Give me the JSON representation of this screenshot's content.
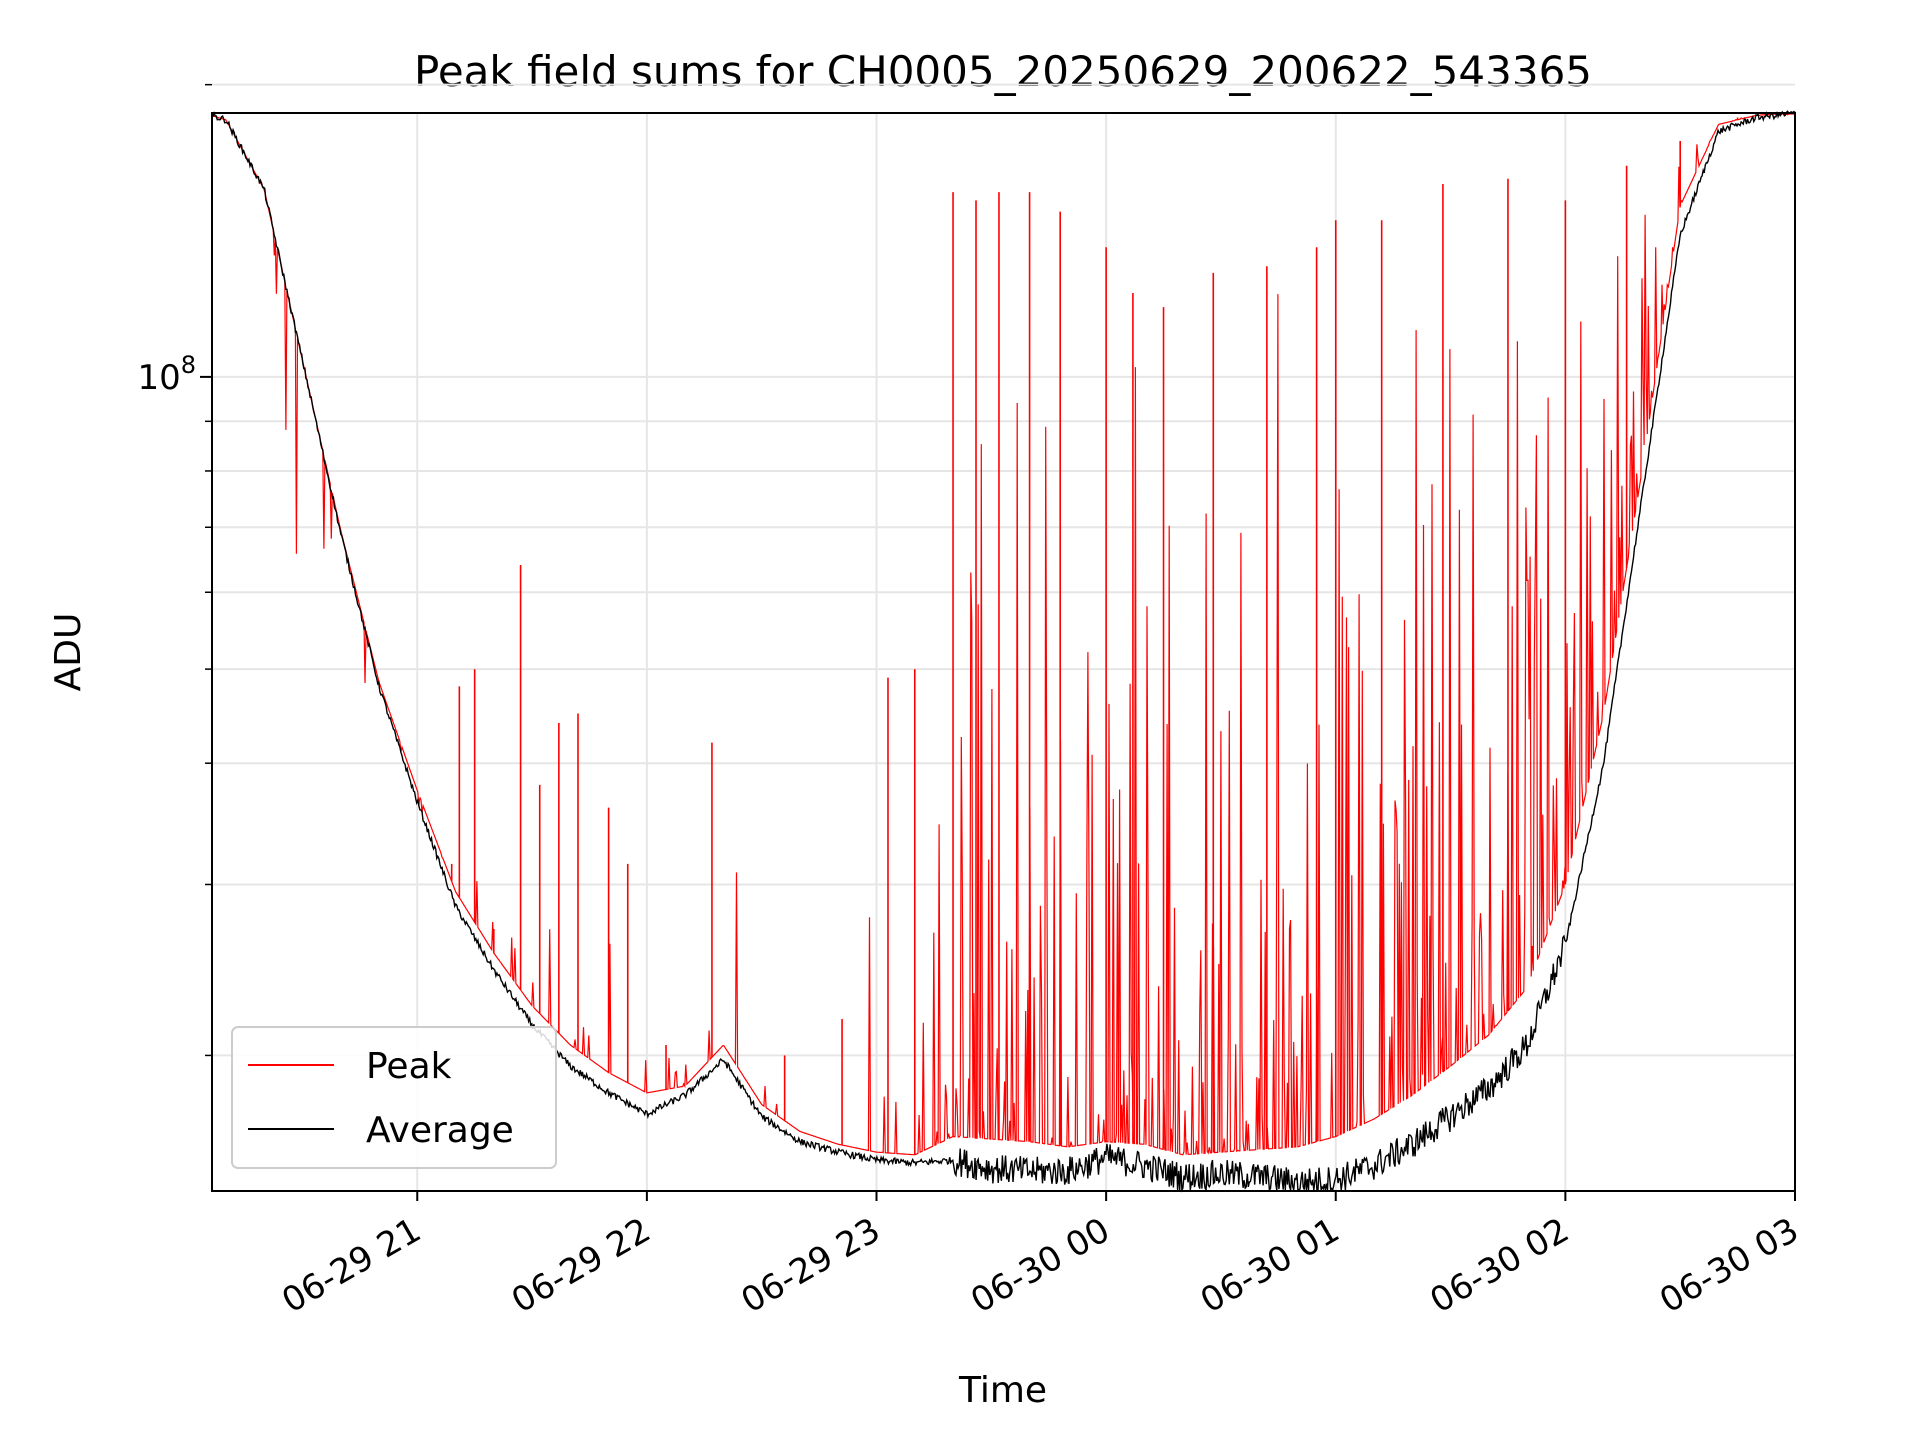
{
  "chart_data": {
    "type": "line",
    "title": "Peak field sums for CH0005_20250629_200622_543365",
    "xlabel": "Time",
    "ylabel": "ADU",
    "yscale": "log",
    "xlim": [
      "2025-06-29 20:06:22",
      "2025-06-30 03:00:00"
    ],
    "ylim": [
      14500000,
      187000000
    ],
    "x_ticks": [
      "06-29 21",
      "06-29 22",
      "06-29 23",
      "06-30 00",
      "06-30 01",
      "06-30 02",
      "06-30 03"
    ],
    "y_ticks": [
      {
        "value": 100000000,
        "label": "10",
        "exponent": "8"
      }
    ],
    "y_minor_ticks": [
      20000000,
      30000000,
      40000000,
      50000000,
      60000000,
      70000000,
      80000000,
      90000000,
      200000000
    ],
    "grid": true,
    "legend_position": "lower-left",
    "colors": {
      "peak": "#ff0000",
      "average": "#000000"
    },
    "series": [
      {
        "name": "Average",
        "x": [
          "20:06",
          "20:10",
          "20:20",
          "20:30",
          "20:40",
          "20:50",
          "21:00",
          "21:10",
          "21:20",
          "21:30",
          "21:40",
          "21:50",
          "22:00",
          "22:10",
          "22:20",
          "22:30",
          "22:40",
          "22:50",
          "23:00",
          "23:10",
          "23:20",
          "23:30",
          "23:40",
          "23:50",
          "00:00",
          "00:10",
          "00:20",
          "00:30",
          "00:40",
          "00:50",
          "01:00",
          "01:10",
          "01:20",
          "01:30",
          "01:40",
          "01:50",
          "02:00",
          "02:10",
          "02:20",
          "02:30",
          "02:40",
          "02:50",
          "03:00"
        ],
        "values": [
          186000000,
          184000000,
          156000000,
          104000000,
          69000000,
          48000000,
          36500000,
          28500000,
          24500000,
          21500000,
          19500000,
          18300000,
          17400000,
          18200000,
          19800000,
          17300000,
          16300000,
          15900000,
          15600000,
          15500000,
          15600000,
          15300000,
          15200000,
          15200000,
          15700000,
          15400000,
          15000000,
          15100000,
          15000000,
          14800000,
          14900000,
          15400000,
          16200000,
          17300000,
          18500000,
          20500000,
          26000000,
          40000000,
          75000000,
          140000000,
          179000000,
          185000000,
          187000000
        ]
      },
      {
        "name": "Peak",
        "envelope_x": [
          "20:06",
          "20:10",
          "20:20",
          "20:30",
          "20:40",
          "20:50",
          "21:00",
          "21:10",
          "21:20",
          "21:30",
          "21:40",
          "21:50",
          "22:00",
          "22:10",
          "22:20",
          "22:30",
          "22:40",
          "22:50",
          "23:00",
          "23:10",
          "23:20",
          "23:30",
          "23:40",
          "23:50",
          "00:00",
          "00:10",
          "00:20",
          "00:30",
          "00:40",
          "00:50",
          "01:00",
          "01:10",
          "01:20",
          "01:30",
          "01:40",
          "01:50",
          "02:00",
          "02:10",
          "02:20",
          "02:30",
          "02:40",
          "02:50",
          "03:00"
        ],
        "envelope_values": [
          186000000,
          184000000,
          156000000,
          104000000,
          69500000,
          48500000,
          37500000,
          29500000,
          25500000,
          22500000,
          20500000,
          19200000,
          18300000,
          18600000,
          20500000,
          17800000,
          16700000,
          16200000,
          15900000,
          15800000,
          16500000,
          16400000,
          16300000,
          16100000,
          16300000,
          16200000,
          15800000,
          15900000,
          16000000,
          16100000,
          16500000,
          17200000,
          18200000,
          19500000,
          21000000,
          23500000,
          30000000,
          45000000,
          80000000,
          150000000,
          182000000,
          186000000,
          187000000
        ],
        "spikes": [
          {
            "t": "21:09",
            "v": 31500000
          },
          {
            "t": "21:11",
            "v": 48000000
          },
          {
            "t": "21:15",
            "v": 50000000
          },
          {
            "t": "21:20",
            "v": 27000000
          },
          {
            "t": "21:27",
            "v": 64000000
          },
          {
            "t": "21:32",
            "v": 38000000
          },
          {
            "t": "21:37",
            "v": 44000000
          },
          {
            "t": "21:42",
            "v": 45000000
          },
          {
            "t": "21:50",
            "v": 36000000
          },
          {
            "t": "21:55",
            "v": 31500000
          },
          {
            "t": "22:05",
            "v": 20500000
          },
          {
            "t": "22:17",
            "v": 42000000
          },
          {
            "t": "22:36",
            "v": 20000000
          },
          {
            "t": "22:51",
            "v": 21800000
          },
          {
            "t": "23:03",
            "v": 49000000
          },
          {
            "t": "23:10",
            "v": 50000000
          },
          {
            "t": "23:20",
            "v": 155000000
          },
          {
            "t": "23:26",
            "v": 152000000
          },
          {
            "t": "23:32",
            "v": 155000000
          },
          {
            "t": "23:40",
            "v": 155000000
          },
          {
            "t": "23:48",
            "v": 148000000
          },
          {
            "t": "24:00",
            "v": 136000000
          },
          {
            "t": "24:07",
            "v": 122000000
          },
          {
            "t": "24:15",
            "v": 118000000
          },
          {
            "t": "24:28",
            "v": 128000000
          },
          {
            "t": "24:42",
            "v": 130000000
          },
          {
            "t": "24:55",
            "v": 136000000
          },
          {
            "t": "25:00",
            "v": 145000000
          },
          {
            "t": "25:12",
            "v": 145000000
          },
          {
            "t": "25:28",
            "v": 158000000
          },
          {
            "t": "25:45",
            "v": 160000000
          },
          {
            "t": "26:00",
            "v": 152000000
          },
          {
            "t": "26:16",
            "v": 165000000
          },
          {
            "t": "26:30",
            "v": 175000000
          },
          {
            "t": "26:45",
            "v": 185000000
          }
        ]
      }
    ]
  }
}
